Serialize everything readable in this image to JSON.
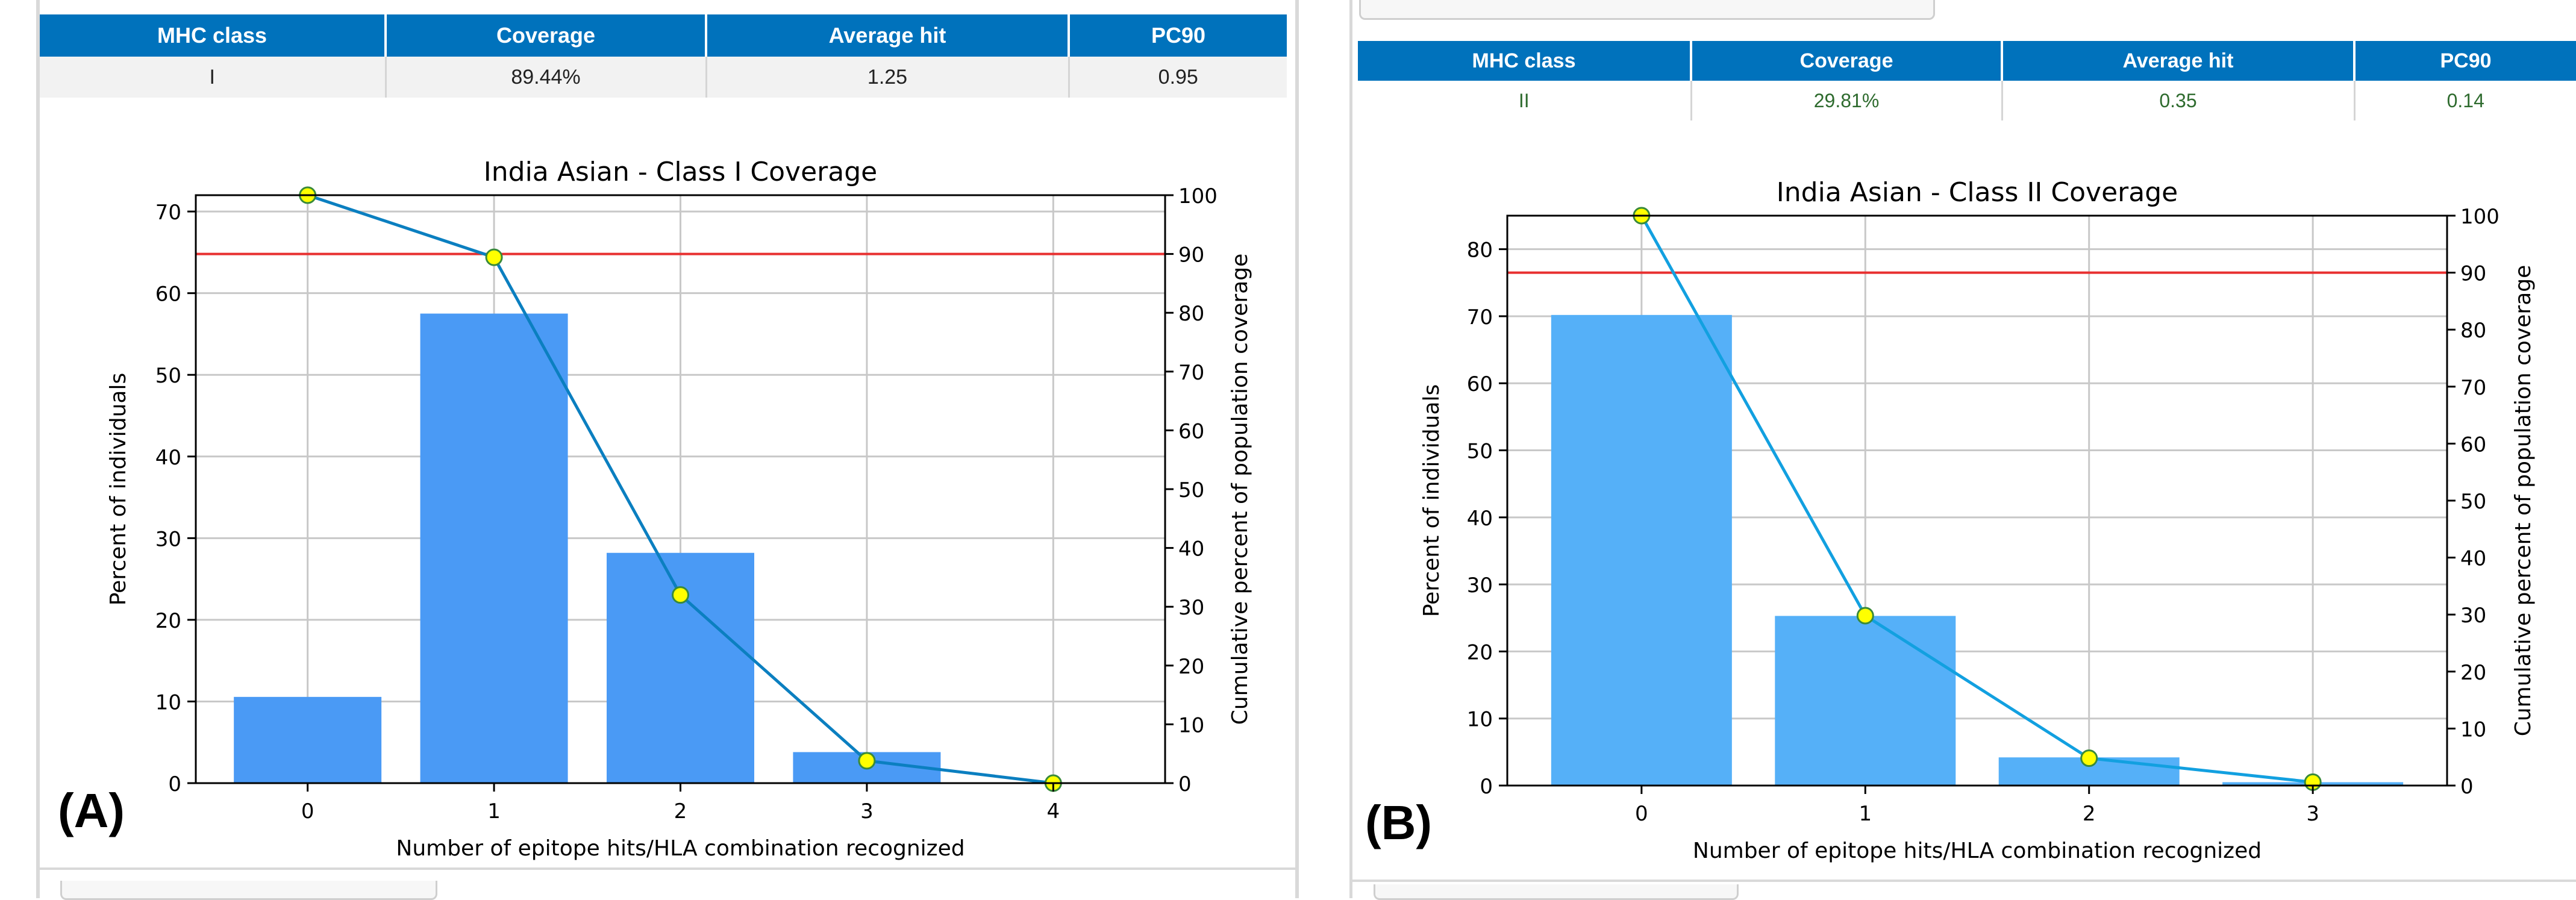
{
  "panels": [
    {
      "label": "(A)",
      "table": {
        "headers": [
          "MHC class",
          "Coverage",
          "Average hit",
          "PC90"
        ],
        "row": [
          "I",
          "89.44%",
          "1.25",
          "0.95"
        ]
      }
    },
    {
      "label": "(B)",
      "table": {
        "headers": [
          "MHC class",
          "Coverage",
          "Average hit",
          "PC90"
        ],
        "row": [
          "II",
          "29.81%",
          "0.35",
          "0.14"
        ]
      }
    }
  ],
  "colors": {
    "bar_a": "#4a9af5",
    "bar_b": "#55b0f8",
    "line_a": "#0b7fc0",
    "line_b": "#12a0e0",
    "marker_fill": "#ffff00",
    "marker_edge": "#3a8a3a",
    "threshold": "#e83030",
    "grid": "#c8c8c8",
    "header": "#0072bc"
  },
  "chart_data": [
    {
      "type": "bar",
      "title": "India Asian - Class I Coverage",
      "xlabel": "Number of epitope hits/HLA combination recognized",
      "ylabel": "Percent of individuals",
      "y2label": "Cumulative percent of population coverage",
      "categories": [
        "0",
        "1",
        "2",
        "3",
        "4"
      ],
      "series": [
        {
          "name": "Percent of individuals",
          "axis": "left",
          "kind": "bar",
          "values": [
            10.56,
            57.5,
            28.2,
            3.8,
            0.0
          ]
        },
        {
          "name": "Cumulative percent of population coverage",
          "axis": "right",
          "kind": "line",
          "values": [
            100,
            89.44,
            32.0,
            3.8,
            0.0
          ]
        }
      ],
      "threshold": {
        "axis": "right",
        "value": 90
      },
      "ylim": [
        0,
        72
      ],
      "y2lim": [
        0,
        100
      ],
      "yticks": [
        0,
        10,
        20,
        30,
        40,
        50,
        60,
        70
      ],
      "y2ticks": [
        0,
        10,
        20,
        30,
        40,
        50,
        60,
        70,
        80,
        90,
        100
      ],
      "xlim": [
        -0.6,
        4.6
      ],
      "grid": true
    },
    {
      "type": "bar",
      "title": "India Asian - Class II Coverage",
      "xlabel": "Number of epitope hits/HLA combination recognized",
      "ylabel": "Percent of individuals",
      "y2label": "Cumulative percent of population coverage",
      "categories": [
        "0",
        "1",
        "2",
        "3"
      ],
      "series": [
        {
          "name": "Percent of individuals",
          "axis": "left",
          "kind": "bar",
          "values": [
            70.19,
            25.3,
            4.2,
            0.5
          ]
        },
        {
          "name": "Cumulative percent of population coverage",
          "axis": "right",
          "kind": "line",
          "values": [
            100,
            29.81,
            4.8,
            0.6
          ]
        }
      ],
      "threshold": {
        "axis": "right",
        "value": 90
      },
      "ylim": [
        0,
        85
      ],
      "y2lim": [
        0,
        100
      ],
      "yticks": [
        0,
        10,
        20,
        30,
        40,
        50,
        60,
        70,
        80
      ],
      "y2ticks": [
        0,
        10,
        20,
        30,
        40,
        50,
        60,
        70,
        80,
        90,
        100
      ],
      "xlim": [
        -0.6,
        3.6
      ],
      "grid": true
    }
  ]
}
